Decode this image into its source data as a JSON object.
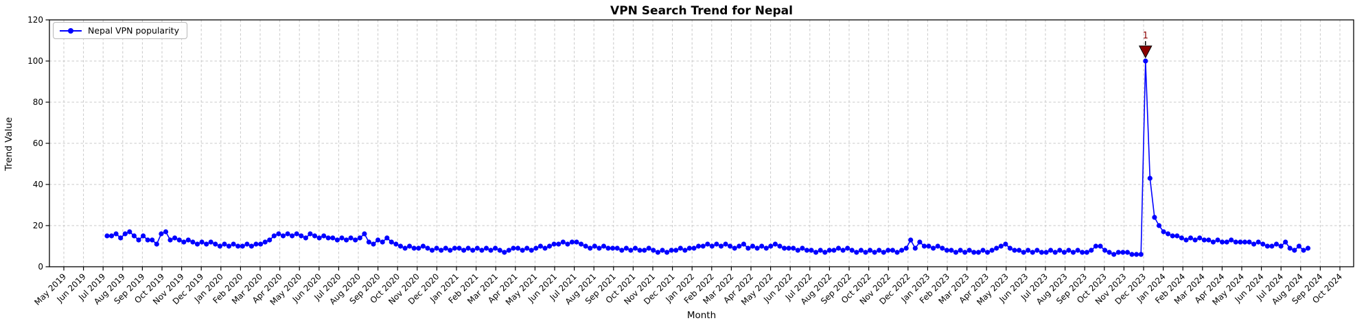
{
  "figure": {
    "background": "#ffffff"
  },
  "chart_data": {
    "type": "line",
    "title": "VPN Search Trend for Nepal",
    "xlabel": "Month",
    "ylabel": "Trend Value",
    "ylim": [
      0,
      120
    ],
    "y_ticks": [
      0,
      20,
      40,
      60,
      80,
      100,
      120
    ],
    "grid": "dashed-both-axes",
    "x_tick_labels": [
      "May 2019",
      "Jun 2019",
      "Jul 2019",
      "Aug 2019",
      "Sep 2019",
      "Oct 2019",
      "Nov 2019",
      "Dec 2019",
      "Jan 2020",
      "Feb 2020",
      "Mar 2020",
      "Apr 2020",
      "May 2020",
      "Jun 2020",
      "Jul 2020",
      "Aug 2020",
      "Sep 2020",
      "Oct 2020",
      "Nov 2020",
      "Dec 2020",
      "Jan 2021",
      "Feb 2021",
      "Mar 2021",
      "Apr 2021",
      "May 2021",
      "Jun 2021",
      "Jul 2021",
      "Aug 2021",
      "Sep 2021",
      "Oct 2021",
      "Nov 2021",
      "Dec 2021",
      "Jan 2022",
      "Feb 2022",
      "Mar 2022",
      "Apr 2022",
      "May 2022",
      "Jun 2022",
      "Jul 2022",
      "Aug 2022",
      "Sep 2022",
      "Oct 2022",
      "Nov 2022",
      "Dec 2022",
      "Jan 2023",
      "Feb 2023",
      "Mar 2023",
      "Apr 2023",
      "May 2023",
      "Jun 2023",
      "Jul 2023",
      "Aug 2023",
      "Sep 2023",
      "Oct 2023",
      "Nov 2023",
      "Dec 2023",
      "Jan 2024",
      "Feb 2024",
      "Mar 2024",
      "Apr 2024",
      "May 2024",
      "Jun 2024",
      "Jul 2024",
      "Aug 2024",
      "Sep 2024",
      "Oct 2024"
    ],
    "legend": {
      "position": "upper-left",
      "entries": [
        {
          "label": "Nepal VPN popularity",
          "color": "#0000ff",
          "marker": "circle"
        }
      ]
    },
    "series": [
      {
        "name": "Nepal VPN popularity",
        "color": "#0000ff",
        "interval": "weekly",
        "start_date": "2019-07-07",
        "values": [
          15,
          15,
          16,
          14,
          16,
          17,
          15,
          13,
          15,
          13,
          13,
          11,
          16,
          17,
          13,
          14,
          13,
          12,
          13,
          12,
          11,
          12,
          11,
          12,
          11,
          10,
          11,
          10,
          11,
          10,
          10,
          11,
          10,
          11,
          11,
          12,
          13,
          15,
          16,
          15,
          16,
          15,
          16,
          15,
          14,
          16,
          15,
          14,
          15,
          14,
          14,
          13,
          14,
          13,
          14,
          13,
          14,
          16,
          12,
          11,
          13,
          12,
          14,
          12,
          11,
          10,
          9,
          10,
          9,
          9,
          10,
          9,
          8,
          9,
          8,
          9,
          8,
          9,
          9,
          8,
          9,
          8,
          9,
          8,
          9,
          8,
          9,
          8,
          7,
          8,
          9,
          9,
          8,
          9,
          8,
          9,
          10,
          9,
          10,
          11,
          11,
          12,
          11,
          12,
          12,
          11,
          10,
          9,
          10,
          9,
          10,
          9,
          9,
          9,
          8,
          9,
          8,
          9,
          8,
          8,
          9,
          8,
          7,
          8,
          7,
          8,
          8,
          9,
          8,
          9,
          9,
          10,
          10,
          11,
          10,
          11,
          10,
          11,
          10,
          9,
          10,
          11,
          9,
          10,
          9,
          10,
          9,
          10,
          11,
          10,
          9,
          9,
          9,
          8,
          9,
          8,
          8,
          7,
          8,
          7,
          8,
          8,
          9,
          8,
          9,
          8,
          7,
          8,
          7,
          8,
          7,
          8,
          7,
          8,
          8,
          7,
          8,
          9,
          13,
          9,
          12,
          10,
          10,
          9,
          10,
          9,
          8,
          8,
          7,
          8,
          7,
          8,
          7,
          7,
          8,
          7,
          8,
          9,
          10,
          11,
          9,
          8,
          8,
          7,
          8,
          7,
          8,
          7,
          7,
          8,
          7,
          8,
          7,
          8,
          7,
          8,
          7,
          7,
          8,
          10,
          10,
          8,
          7,
          6,
          7,
          7,
          7,
          6,
          6,
          6,
          100,
          43,
          24,
          20,
          17,
          16,
          15,
          15,
          14,
          13,
          14,
          13,
          14,
          13,
          13,
          12,
          13,
          12,
          12,
          13,
          12,
          12,
          12,
          12,
          11,
          12,
          11,
          10,
          10,
          11,
          10,
          12,
          9,
          8,
          10,
          8,
          9
        ]
      }
    ],
    "annotations": [
      {
        "label": "1",
        "date": "2023-12-03",
        "value": 100,
        "marker": "triangle-down",
        "color": "#8b0000"
      }
    ]
  }
}
